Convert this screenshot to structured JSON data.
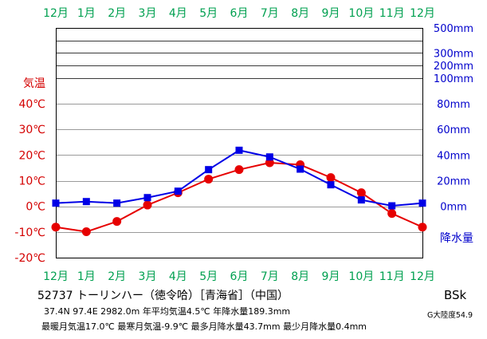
{
  "chart_data": {
    "type": "line",
    "categories": [
      "12月",
      "1月",
      "2月",
      "3月",
      "4月",
      "5月",
      "6月",
      "7月",
      "8月",
      "9月",
      "10月",
      "11月",
      "12月"
    ],
    "ylabel": "気温",
    "ylim": [
      -20,
      40
    ],
    "yticks": [
      {
        "value": 40,
        "label": "40℃"
      },
      {
        "value": 30,
        "label": "30℃"
      },
      {
        "value": 20,
        "label": "20℃"
      },
      {
        "value": 10,
        "label": "10℃"
      },
      {
        "value": 0,
        "label": "0℃"
      },
      {
        "value": -10,
        "label": "-10℃"
      },
      {
        "value": -20,
        "label": "-20℃"
      }
    ],
    "y2label": "降水量",
    "y2lim": [
      0,
      500
    ],
    "y2ticks": [
      {
        "value": 500,
        "label": "500mm"
      },
      {
        "value": 400,
        "label": ""
      },
      {
        "value": 300,
        "label": "300mm"
      },
      {
        "value": 200,
        "label": "200mm"
      },
      {
        "value": 100,
        "label": "100mm"
      },
      {
        "value": 80,
        "label": "80mm"
      },
      {
        "value": 60,
        "label": "60mm"
      },
      {
        "value": 40,
        "label": "40mm"
      },
      {
        "value": 20,
        "label": "20mm"
      },
      {
        "value": 0,
        "label": "0mm"
      }
    ],
    "grid": true,
    "series": [
      {
        "color": "#e60000",
        "values": [
          -8.1,
          -9.9,
          -5.9,
          0.5,
          5.3,
          10.6,
          14.3,
          17.0,
          16.2,
          11.2,
          5.3,
          -2.8,
          -8.1
        ]
      },
      {
        "color": "#0000e6",
        "y_axis": 2,
        "values": [
          2.5,
          3.7,
          2.5,
          6.8,
          11.8,
          28.6,
          43.7,
          38.5,
          29.0,
          16.8,
          5.0,
          0.4,
          2.5
        ]
      }
    ]
  },
  "station": {
    "title": "52737 トーリンハー（徳令哈）［青海省］（中国）",
    "summary": "37.4N 97.4E 2982.0m 年平均気温4.5℃ 年降水量189.3mm",
    "extremes": "最暖月気温17.0℃ 最寒月気温-9.9℃ 最多月降水量43.7mm 最少月降水量0.4mm",
    "climate_class": "BSk",
    "continentality": "G大陸度54.9"
  },
  "colors": {
    "month_labels": "#00a050",
    "temperature_axis": "#d40000",
    "precipitation_axis": "#0000cc"
  }
}
